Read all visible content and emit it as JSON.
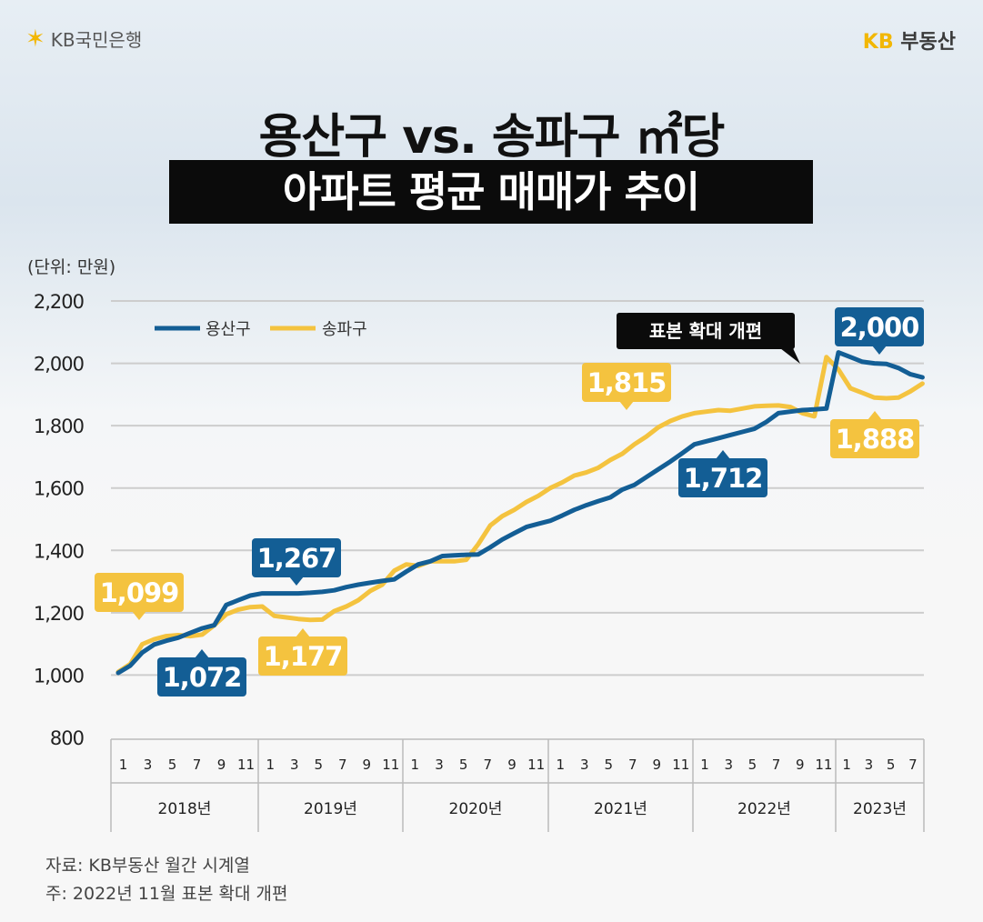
{
  "brand": {
    "left_logo": "KB국민은행",
    "right_logo_kb": "KB",
    "right_logo_text": "부동산",
    "star_icon": "kb-star-icon"
  },
  "title": {
    "line1": "용산구 vs. 송파구 ㎡당",
    "line2": "아파트 평균 매매가 추이"
  },
  "unit": "(단위: 만원)",
  "footer": {
    "source": "자료: KB부동산 월간 시계열",
    "note": "주: 2022년 11월 표본 확대 개편"
  },
  "colors": {
    "yongsan": "#135e95",
    "songpa": "#f4c33f",
    "grid": "#cdcdcd"
  },
  "chart_data": {
    "type": "line",
    "ylim": [
      800,
      2200
    ],
    "yticks": [
      "2,200",
      "2,000",
      "1,800",
      "1,600",
      "1,400",
      "1,200",
      "1,000",
      "800"
    ],
    "ytick_values": [
      2200,
      2000,
      1800,
      1600,
      1400,
      1200,
      1000,
      800
    ],
    "month_ticks": [
      "1",
      "3",
      "5",
      "7",
      "9",
      "11",
      "1",
      "3",
      "5",
      "7",
      "9",
      "11",
      "1",
      "3",
      "5",
      "7",
      "9",
      "11",
      "1",
      "3",
      "5",
      "7",
      "9",
      "11",
      "1",
      "3",
      "5",
      "7",
      "9",
      "11",
      "1",
      "3",
      "5",
      "7"
    ],
    "years": [
      "2018년",
      "2019년",
      "2020년",
      "2021년",
      "2022년",
      "2023년"
    ],
    "x_start": "2018-01",
    "x_end": "2023-08",
    "series": [
      {
        "name": "용산구",
        "color": "#135e95",
        "values": [
          1007,
          1030,
          1072,
          1098,
          1110,
          1120,
          1135,
          1150,
          1160,
          1225,
          1240,
          1255,
          1262,
          1262,
          1262,
          1262,
          1264,
          1267,
          1272,
          1282,
          1290,
          1296,
          1302,
          1307,
          1332,
          1355,
          1365,
          1382,
          1384,
          1386,
          1387,
          1410,
          1435,
          1455,
          1475,
          1485,
          1495,
          1512,
          1530,
          1545,
          1558,
          1570,
          1595,
          1610,
          1635,
          1660,
          1685,
          1712,
          1740,
          1750,
          1760,
          1770,
          1780,
          1790,
          1812,
          1840,
          1845,
          1850,
          1852,
          1855,
          2035,
          2020,
          2005,
          2000,
          1998,
          1985,
          1965,
          1955
        ]
      },
      {
        "name": "송파구",
        "color": "#f4c33f",
        "values": [
          1010,
          1035,
          1099,
          1115,
          1125,
          1128,
          1125,
          1130,
          1160,
          1195,
          1210,
          1218,
          1220,
          1190,
          1185,
          1180,
          1177,
          1178,
          1205,
          1220,
          1240,
          1270,
          1290,
          1335,
          1355,
          1350,
          1365,
          1365,
          1365,
          1370,
          1420,
          1480,
          1510,
          1530,
          1555,
          1575,
          1600,
          1618,
          1640,
          1650,
          1665,
          1690,
          1710,
          1740,
          1765,
          1795,
          1815,
          1830,
          1840,
          1845,
          1850,
          1848,
          1855,
          1862,
          1864,
          1865,
          1860,
          1840,
          1830,
          2020,
          1980,
          1920,
          1905,
          1890,
          1888,
          1890,
          1910,
          1935
        ]
      }
    ],
    "callouts": [
      {
        "series": "송파구",
        "text": "1,099",
        "month": 2
      },
      {
        "series": "용산구",
        "text": "1,072",
        "month": 2
      },
      {
        "series": "용산구",
        "text": "1,267",
        "month": 17
      },
      {
        "series": "송파구",
        "text": "1,177",
        "month": 16
      },
      {
        "series": "송파구",
        "text": "1,815",
        "month": 46
      },
      {
        "series": "용산구",
        "text": "1,712",
        "month": 47
      },
      {
        "series": "용산구",
        "text": "2,000",
        "month": 63
      },
      {
        "series": "송파구",
        "text": "1,888",
        "month": 64
      }
    ],
    "annotation": {
      "text": "표본 확대 개편",
      "month": 58
    },
    "legend": [
      "용산구",
      "송파구"
    ]
  }
}
